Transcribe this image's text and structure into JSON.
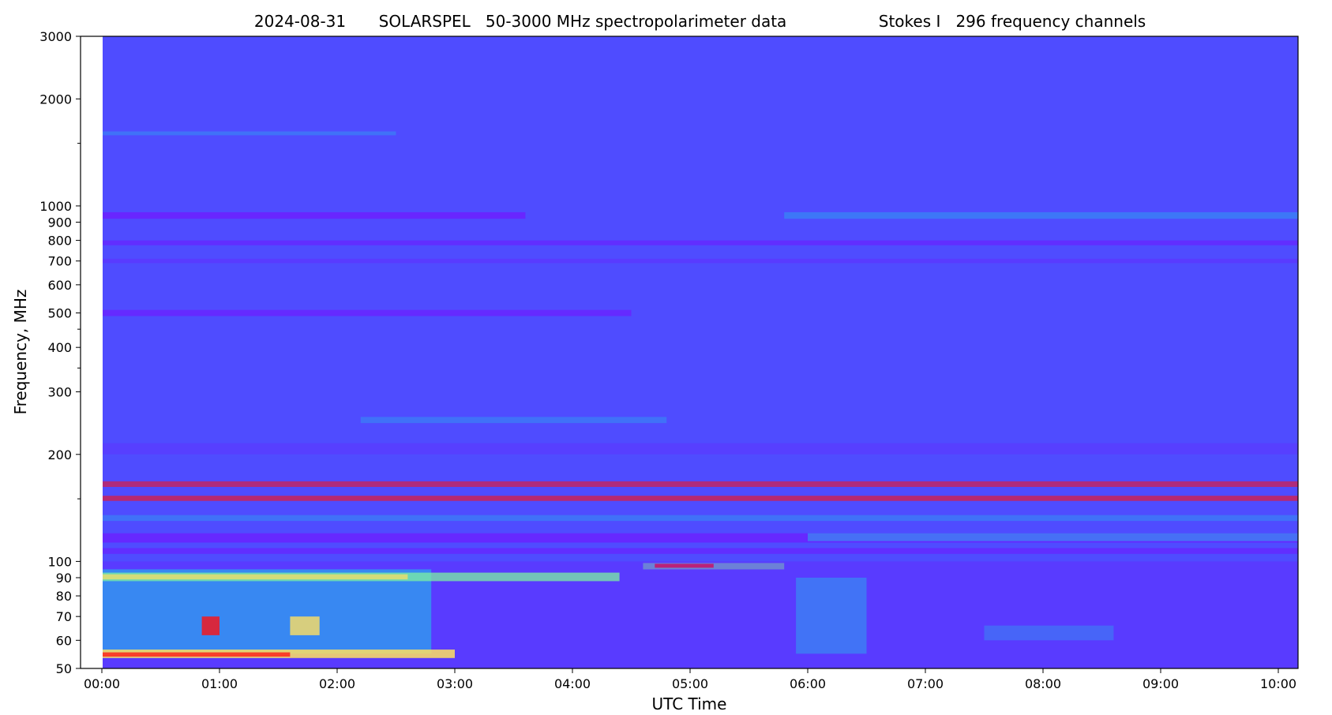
{
  "chart_data": {
    "type": "heatmap",
    "title_parts": [
      "2024-08-31",
      "SOLARSPEL   50-3000 MHz spectropolarimeter data",
      "Stokes I   296 frequency channels"
    ],
    "xlabel": "UTC Time",
    "ylabel": "Frequency, MHz",
    "x_range_hours": [
      0,
      10.17
    ],
    "y_range_mhz": [
      50,
      3000
    ],
    "y_scale": "log",
    "x_ticks": [
      {
        "label": "00:00",
        "hour": 0
      },
      {
        "label": "01:00",
        "hour": 1
      },
      {
        "label": "02:00",
        "hour": 2
      },
      {
        "label": "03:00",
        "hour": 3
      },
      {
        "label": "04:00",
        "hour": 4
      },
      {
        "label": "05:00",
        "hour": 5
      },
      {
        "label": "06:00",
        "hour": 6
      },
      {
        "label": "07:00",
        "hour": 7
      },
      {
        "label": "08:00",
        "hour": 8
      },
      {
        "label": "09:00",
        "hour": 9
      },
      {
        "label": "10:00",
        "hour": 10
      }
    ],
    "y_ticks_major": [
      {
        "label": "50",
        "mhz": 50
      },
      {
        "label": "60",
        "mhz": 60
      },
      {
        "label": "70",
        "mhz": 70
      },
      {
        "label": "80",
        "mhz": 80
      },
      {
        "label": "90",
        "mhz": 90
      },
      {
        "label": "100",
        "mhz": 100
      },
      {
        "label": "200",
        "mhz": 200
      },
      {
        "label": "300",
        "mhz": 300
      },
      {
        "label": "400",
        "mhz": 400
      },
      {
        "label": "500",
        "mhz": 500
      },
      {
        "label": "600",
        "mhz": 600
      },
      {
        "label": "700",
        "mhz": 700
      },
      {
        "label": "800",
        "mhz": 800
      },
      {
        "label": "900",
        "mhz": 900
      },
      {
        "label": "1000",
        "mhz": 1000
      },
      {
        "label": "2000",
        "mhz": 2000
      },
      {
        "label": "3000",
        "mhz": 3000
      }
    ],
    "y_ticks_minor_mhz": [
      150,
      350,
      450,
      1500
    ],
    "colormap": "rainbow",
    "colors": {
      "background": "#4f4cff",
      "deep": "#6a22ff",
      "cyan": "#1ec8e8",
      "green": "#7cf2a0",
      "yellow": "#ffe060",
      "red": "#ff1010"
    },
    "bands": [
      {
        "fmin": 920,
        "fmax": 960,
        "t0": 0,
        "t1": 3.6,
        "color": "deep",
        "opacity": 0.9
      },
      {
        "fmin": 920,
        "fmax": 960,
        "t0": 5.8,
        "t1": 10.17,
        "color": "cyan",
        "opacity": 0.35
      },
      {
        "fmin": 775,
        "fmax": 800,
        "t0": 0,
        "t1": 10.17,
        "color": "deep",
        "opacity": 0.7
      },
      {
        "fmin": 690,
        "fmax": 710,
        "t0": 0,
        "t1": 10.17,
        "color": "deep",
        "opacity": 0.4
      },
      {
        "fmin": 490,
        "fmax": 510,
        "t0": 0,
        "t1": 4.5,
        "color": "deep",
        "opacity": 0.8
      },
      {
        "fmin": 1580,
        "fmax": 1620,
        "t0": 0,
        "t1": 2.5,
        "color": "cyan",
        "opacity": 0.3
      },
      {
        "fmin": 245,
        "fmax": 255,
        "t0": 2.2,
        "t1": 4.8,
        "color": "cyan",
        "opacity": 0.3
      },
      {
        "fmin": 200,
        "fmax": 215,
        "t0": 0,
        "t1": 10.17,
        "color": "deep",
        "opacity": 0.3
      },
      {
        "fmin": 162,
        "fmax": 168,
        "t0": 0,
        "t1": 10.17,
        "color": "red",
        "opacity": 0.55
      },
      {
        "fmin": 148,
        "fmax": 153,
        "t0": 0,
        "t1": 10.17,
        "color": "red",
        "opacity": 0.6
      },
      {
        "fmin": 130,
        "fmax": 135,
        "t0": 0,
        "t1": 10.17,
        "color": "cyan",
        "opacity": 0.3
      },
      {
        "fmin": 113,
        "fmax": 120,
        "t0": 0,
        "t1": 10.17,
        "color": "deep",
        "opacity": 0.85
      },
      {
        "fmin": 114,
        "fmax": 120,
        "t0": 6,
        "t1": 10.17,
        "color": "cyan",
        "opacity": 0.45
      },
      {
        "fmin": 105,
        "fmax": 109,
        "t0": 0,
        "t1": 10.17,
        "color": "deep",
        "opacity": 0.7
      },
      {
        "fmin": 95,
        "fmax": 99,
        "t0": 4.6,
        "t1": 5.8,
        "color": "green",
        "opacity": 0.7
      },
      {
        "fmin": 96,
        "fmax": 98.5,
        "t0": 4.7,
        "t1": 5.2,
        "color": "red",
        "opacity": 0.9
      },
      {
        "fmin": 50,
        "fmax": 100,
        "t0": 0,
        "t1": 10.17,
        "color": "deep",
        "opacity": 0.4
      },
      {
        "fmin": 55,
        "fmax": 95,
        "t0": 0,
        "t1": 2.8,
        "color": "cyan",
        "opacity": 0.55
      },
      {
        "fmin": 88,
        "fmax": 93,
        "t0": 0,
        "t1": 4.4,
        "color": "green",
        "opacity": 0.75
      },
      {
        "fmin": 89,
        "fmax": 92,
        "t0": 0,
        "t1": 2.6,
        "color": "yellow",
        "opacity": 0.7
      },
      {
        "fmin": 53.5,
        "fmax": 56.5,
        "t0": 0,
        "t1": 3,
        "color": "yellow",
        "opacity": 0.85
      },
      {
        "fmin": 54,
        "fmax": 55.5,
        "t0": 0,
        "t1": 1.6,
        "color": "red",
        "opacity": 0.75
      },
      {
        "fmin": 62,
        "fmax": 70,
        "t0": 0.85,
        "t1": 1.0,
        "color": "red",
        "opacity": 0.8
      },
      {
        "fmin": 62,
        "fmax": 70,
        "t0": 1.6,
        "t1": 1.85,
        "color": "yellow",
        "opacity": 0.8
      },
      {
        "fmin": 55,
        "fmax": 90,
        "t0": 5.9,
        "t1": 6.5,
        "color": "cyan",
        "opacity": 0.4
      },
      {
        "fmin": 60,
        "fmax": 66,
        "t0": 7.5,
        "t1": 8.6,
        "color": "cyan",
        "opacity": 0.3
      }
    ]
  }
}
